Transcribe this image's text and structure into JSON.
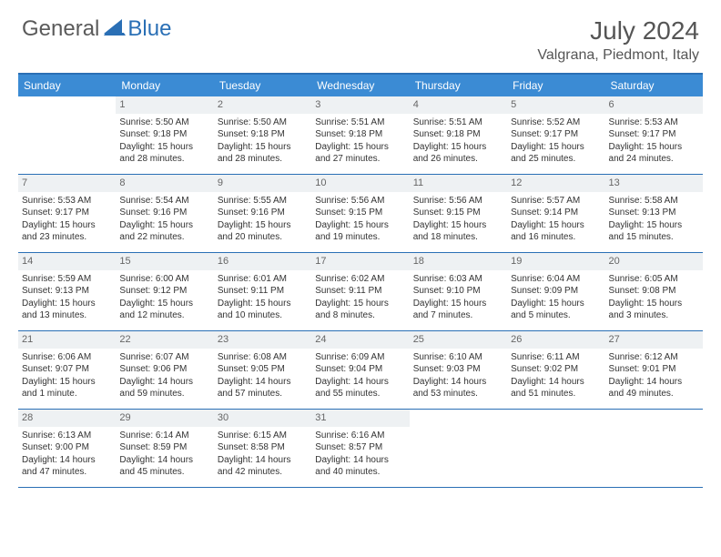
{
  "logo": {
    "text_general": "General",
    "text_blue": "Blue",
    "shape_color": "#2a6fb5"
  },
  "title": {
    "month_year": "July 2024",
    "location": "Valgrana, Piedmont, Italy"
  },
  "colors": {
    "header_bg": "#3b8bd4",
    "header_text": "#ffffff",
    "border": "#2a6fb5",
    "daynum_bg": "#eef1f3",
    "daynum_text": "#666666",
    "body_text": "#333333"
  },
  "day_names": [
    "Sunday",
    "Monday",
    "Tuesday",
    "Wednesday",
    "Thursday",
    "Friday",
    "Saturday"
  ],
  "weeks": [
    [
      {
        "empty": true
      },
      {
        "day": "1",
        "sunrise": "5:50 AM",
        "sunset": "9:18 PM",
        "daylight": "15 hours and 28 minutes."
      },
      {
        "day": "2",
        "sunrise": "5:50 AM",
        "sunset": "9:18 PM",
        "daylight": "15 hours and 28 minutes."
      },
      {
        "day": "3",
        "sunrise": "5:51 AM",
        "sunset": "9:18 PM",
        "daylight": "15 hours and 27 minutes."
      },
      {
        "day": "4",
        "sunrise": "5:51 AM",
        "sunset": "9:18 PM",
        "daylight": "15 hours and 26 minutes."
      },
      {
        "day": "5",
        "sunrise": "5:52 AM",
        "sunset": "9:17 PM",
        "daylight": "15 hours and 25 minutes."
      },
      {
        "day": "6",
        "sunrise": "5:53 AM",
        "sunset": "9:17 PM",
        "daylight": "15 hours and 24 minutes."
      }
    ],
    [
      {
        "day": "7",
        "sunrise": "5:53 AM",
        "sunset": "9:17 PM",
        "daylight": "15 hours and 23 minutes."
      },
      {
        "day": "8",
        "sunrise": "5:54 AM",
        "sunset": "9:16 PM",
        "daylight": "15 hours and 22 minutes."
      },
      {
        "day": "9",
        "sunrise": "5:55 AM",
        "sunset": "9:16 PM",
        "daylight": "15 hours and 20 minutes."
      },
      {
        "day": "10",
        "sunrise": "5:56 AM",
        "sunset": "9:15 PM",
        "daylight": "15 hours and 19 minutes."
      },
      {
        "day": "11",
        "sunrise": "5:56 AM",
        "sunset": "9:15 PM",
        "daylight": "15 hours and 18 minutes."
      },
      {
        "day": "12",
        "sunrise": "5:57 AM",
        "sunset": "9:14 PM",
        "daylight": "15 hours and 16 minutes."
      },
      {
        "day": "13",
        "sunrise": "5:58 AM",
        "sunset": "9:13 PM",
        "daylight": "15 hours and 15 minutes."
      }
    ],
    [
      {
        "day": "14",
        "sunrise": "5:59 AM",
        "sunset": "9:13 PM",
        "daylight": "15 hours and 13 minutes."
      },
      {
        "day": "15",
        "sunrise": "6:00 AM",
        "sunset": "9:12 PM",
        "daylight": "15 hours and 12 minutes."
      },
      {
        "day": "16",
        "sunrise": "6:01 AM",
        "sunset": "9:11 PM",
        "daylight": "15 hours and 10 minutes."
      },
      {
        "day": "17",
        "sunrise": "6:02 AM",
        "sunset": "9:11 PM",
        "daylight": "15 hours and 8 minutes."
      },
      {
        "day": "18",
        "sunrise": "6:03 AM",
        "sunset": "9:10 PM",
        "daylight": "15 hours and 7 minutes."
      },
      {
        "day": "19",
        "sunrise": "6:04 AM",
        "sunset": "9:09 PM",
        "daylight": "15 hours and 5 minutes."
      },
      {
        "day": "20",
        "sunrise": "6:05 AM",
        "sunset": "9:08 PM",
        "daylight": "15 hours and 3 minutes."
      }
    ],
    [
      {
        "day": "21",
        "sunrise": "6:06 AM",
        "sunset": "9:07 PM",
        "daylight": "15 hours and 1 minute."
      },
      {
        "day": "22",
        "sunrise": "6:07 AM",
        "sunset": "9:06 PM",
        "daylight": "14 hours and 59 minutes."
      },
      {
        "day": "23",
        "sunrise": "6:08 AM",
        "sunset": "9:05 PM",
        "daylight": "14 hours and 57 minutes."
      },
      {
        "day": "24",
        "sunrise": "6:09 AM",
        "sunset": "9:04 PM",
        "daylight": "14 hours and 55 minutes."
      },
      {
        "day": "25",
        "sunrise": "6:10 AM",
        "sunset": "9:03 PM",
        "daylight": "14 hours and 53 minutes."
      },
      {
        "day": "26",
        "sunrise": "6:11 AM",
        "sunset": "9:02 PM",
        "daylight": "14 hours and 51 minutes."
      },
      {
        "day": "27",
        "sunrise": "6:12 AM",
        "sunset": "9:01 PM",
        "daylight": "14 hours and 49 minutes."
      }
    ],
    [
      {
        "day": "28",
        "sunrise": "6:13 AM",
        "sunset": "9:00 PM",
        "daylight": "14 hours and 47 minutes."
      },
      {
        "day": "29",
        "sunrise": "6:14 AM",
        "sunset": "8:59 PM",
        "daylight": "14 hours and 45 minutes."
      },
      {
        "day": "30",
        "sunrise": "6:15 AM",
        "sunset": "8:58 PM",
        "daylight": "14 hours and 42 minutes."
      },
      {
        "day": "31",
        "sunrise": "6:16 AM",
        "sunset": "8:57 PM",
        "daylight": "14 hours and 40 minutes."
      },
      {
        "empty": true
      },
      {
        "empty": true
      },
      {
        "empty": true
      }
    ]
  ],
  "labels": {
    "sunrise": "Sunrise: ",
    "sunset": "Sunset: ",
    "daylight": "Daylight: "
  }
}
